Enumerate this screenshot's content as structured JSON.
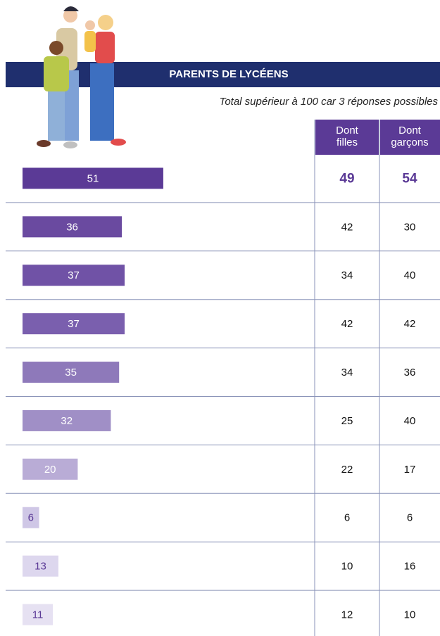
{
  "chart_data": {
    "type": "bar",
    "title": "PARENTS DE LYCÉENS",
    "subtitle": "Total supérieur à 100 car 3 réponses possibles",
    "values": [
      51,
      36,
      37,
      37,
      35,
      32,
      20,
      6,
      13,
      11
    ],
    "colors": [
      "#5b3a96",
      "#6a4aa0",
      "#7052a6",
      "#7a5fae",
      "#8e79ba",
      "#a08fc6",
      "#b9acd6",
      "#cfc7e6",
      "#ddd7ee",
      "#e6e1f2"
    ],
    "label_colors": [
      "#ffffff",
      "#ffffff",
      "#ffffff",
      "#ffffff",
      "#ffffff",
      "#ffffff",
      "#ffffff",
      "#5b3a96",
      "#5b3a96",
      "#5b3a96"
    ]
  },
  "table": {
    "headers": [
      "Dont filles",
      "Dont garçons"
    ],
    "rows": [
      [
        49,
        54
      ],
      [
        42,
        30
      ],
      [
        34,
        40
      ],
      [
        42,
        42
      ],
      [
        34,
        36
      ],
      [
        25,
        40
      ],
      [
        22,
        17
      ],
      [
        6,
        6
      ],
      [
        10,
        16
      ],
      [
        12,
        10
      ]
    ]
  }
}
